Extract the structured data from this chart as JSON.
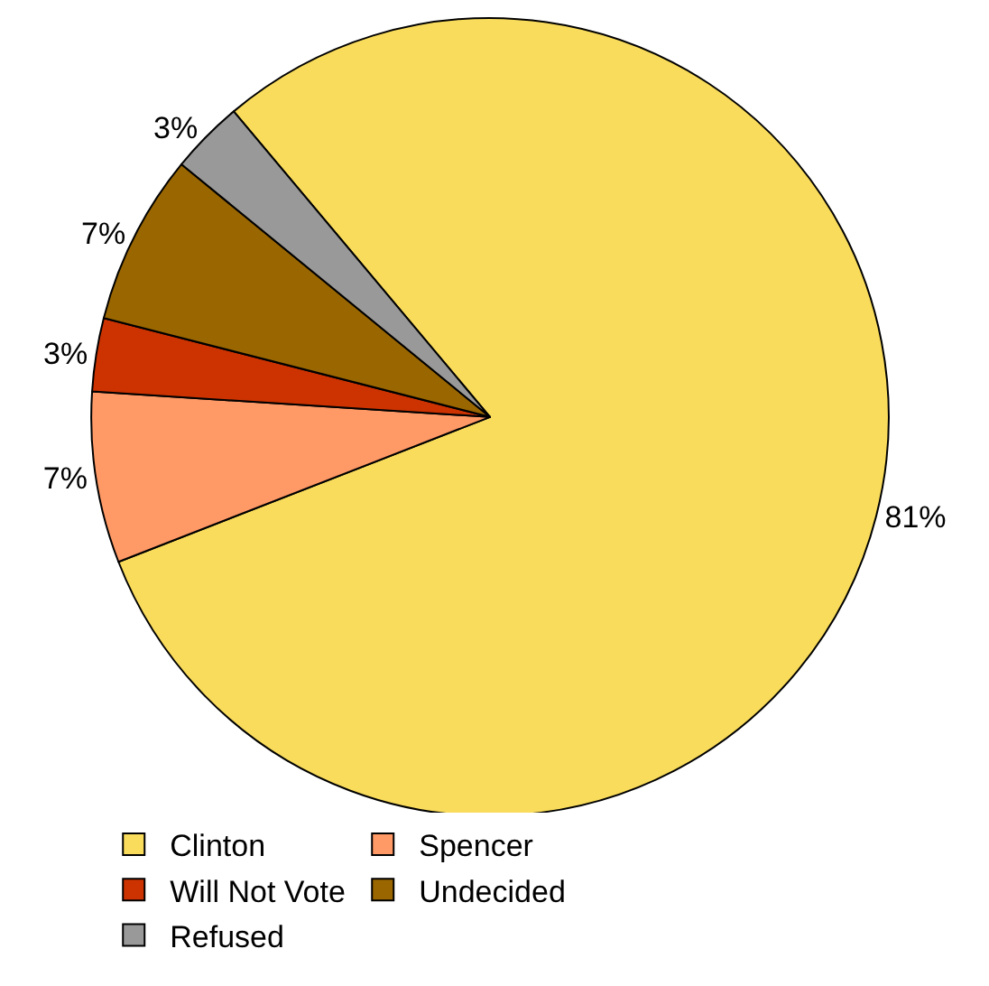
{
  "chart_data": {
    "type": "pie",
    "categories": [
      "Clinton",
      "Spencer",
      "Will Not Vote",
      "Undecided",
      "Refused"
    ],
    "values": [
      81,
      7,
      3,
      7,
      3
    ],
    "colors": [
      "#f9dc5c",
      "#ff9966",
      "#cc3300",
      "#996600",
      "#999999"
    ],
    "value_labels": [
      "81%",
      "7%",
      "3%",
      "7%",
      "3%"
    ],
    "legend": "bottom"
  }
}
